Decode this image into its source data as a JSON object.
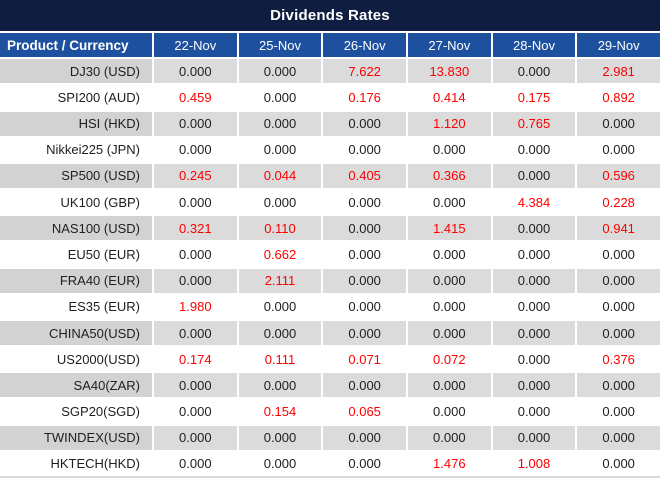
{
  "title": "Dividends Rates",
  "columns": {
    "product_header": "Product / Currency",
    "dates": [
      "22-Nov",
      "25-Nov",
      "26-Nov",
      "27-Nov",
      "28-Nov",
      "29-Nov"
    ]
  },
  "rows": [
    {
      "product": "DJ30 (USD)",
      "values": [
        "0.000",
        "0.000",
        "7.622",
        "13.830",
        "0.000",
        "2.981"
      ]
    },
    {
      "product": "SPI200 (AUD)",
      "values": [
        "0.459",
        "0.000",
        "0.176",
        "0.414",
        "0.175",
        "0.892"
      ]
    },
    {
      "product": "HSI (HKD)",
      "values": [
        "0.000",
        "0.000",
        "0.000",
        "1.120",
        "0.765",
        "0.000"
      ]
    },
    {
      "product": "Nikkei225 (JPN)",
      "values": [
        "0.000",
        "0.000",
        "0.000",
        "0.000",
        "0.000",
        "0.000"
      ]
    },
    {
      "product": "SP500 (USD)",
      "values": [
        "0.245",
        "0.044",
        "0.405",
        "0.366",
        "0.000",
        "0.596"
      ]
    },
    {
      "product": "UK100 (GBP)",
      "values": [
        "0.000",
        "0.000",
        "0.000",
        "0.000",
        "4.384",
        "0.228"
      ]
    },
    {
      "product": "NAS100 (USD)",
      "values": [
        "0.321",
        "0.110",
        "0.000",
        "1.415",
        "0.000",
        "0.941"
      ]
    },
    {
      "product": "EU50 (EUR)",
      "values": [
        "0.000",
        "0.662",
        "0.000",
        "0.000",
        "0.000",
        "0.000"
      ]
    },
    {
      "product": "FRA40 (EUR)",
      "values": [
        "0.000",
        "2.111",
        "0.000",
        "0.000",
        "0.000",
        "0.000"
      ]
    },
    {
      "product": "ES35 (EUR)",
      "values": [
        "1.980",
        "0.000",
        "0.000",
        "0.000",
        "0.000",
        "0.000"
      ]
    },
    {
      "product": "CHINA50(USD)",
      "values": [
        "0.000",
        "0.000",
        "0.000",
        "0.000",
        "0.000",
        "0.000"
      ]
    },
    {
      "product": "US2000(USD)",
      "values": [
        "0.174",
        "0.111",
        "0.071",
        "0.072",
        "0.000",
        "0.376"
      ]
    },
    {
      "product": "SA40(ZAR)",
      "values": [
        "0.000",
        "0.000",
        "0.000",
        "0.000",
        "0.000",
        "0.000"
      ]
    },
    {
      "product": "SGP20(SGD)",
      "values": [
        "0.000",
        "0.154",
        "0.065",
        "0.000",
        "0.000",
        "0.000"
      ]
    },
    {
      "product": "TWINDEX(USD)",
      "values": [
        "0.000",
        "0.000",
        "0.000",
        "0.000",
        "0.000",
        "0.000"
      ]
    },
    {
      "product": "HKTECH(HKD)",
      "values": [
        "0.000",
        "0.000",
        "0.000",
        "1.476",
        "1.008",
        "0.000"
      ]
    }
  ],
  "colors": {
    "title_bg": "#0F1E40",
    "header_bg": "#1D509E",
    "header_text": "#FFFFFF",
    "row_gray_bg": "#DBDBDB",
    "row_gray_label_bg": "#D2D2D2",
    "row_white_bg": "#FFFFFF",
    "value_zero_text": "#202020",
    "value_nonzero_text": "#FD0000",
    "bottom_edge": "#D9D9D9"
  }
}
